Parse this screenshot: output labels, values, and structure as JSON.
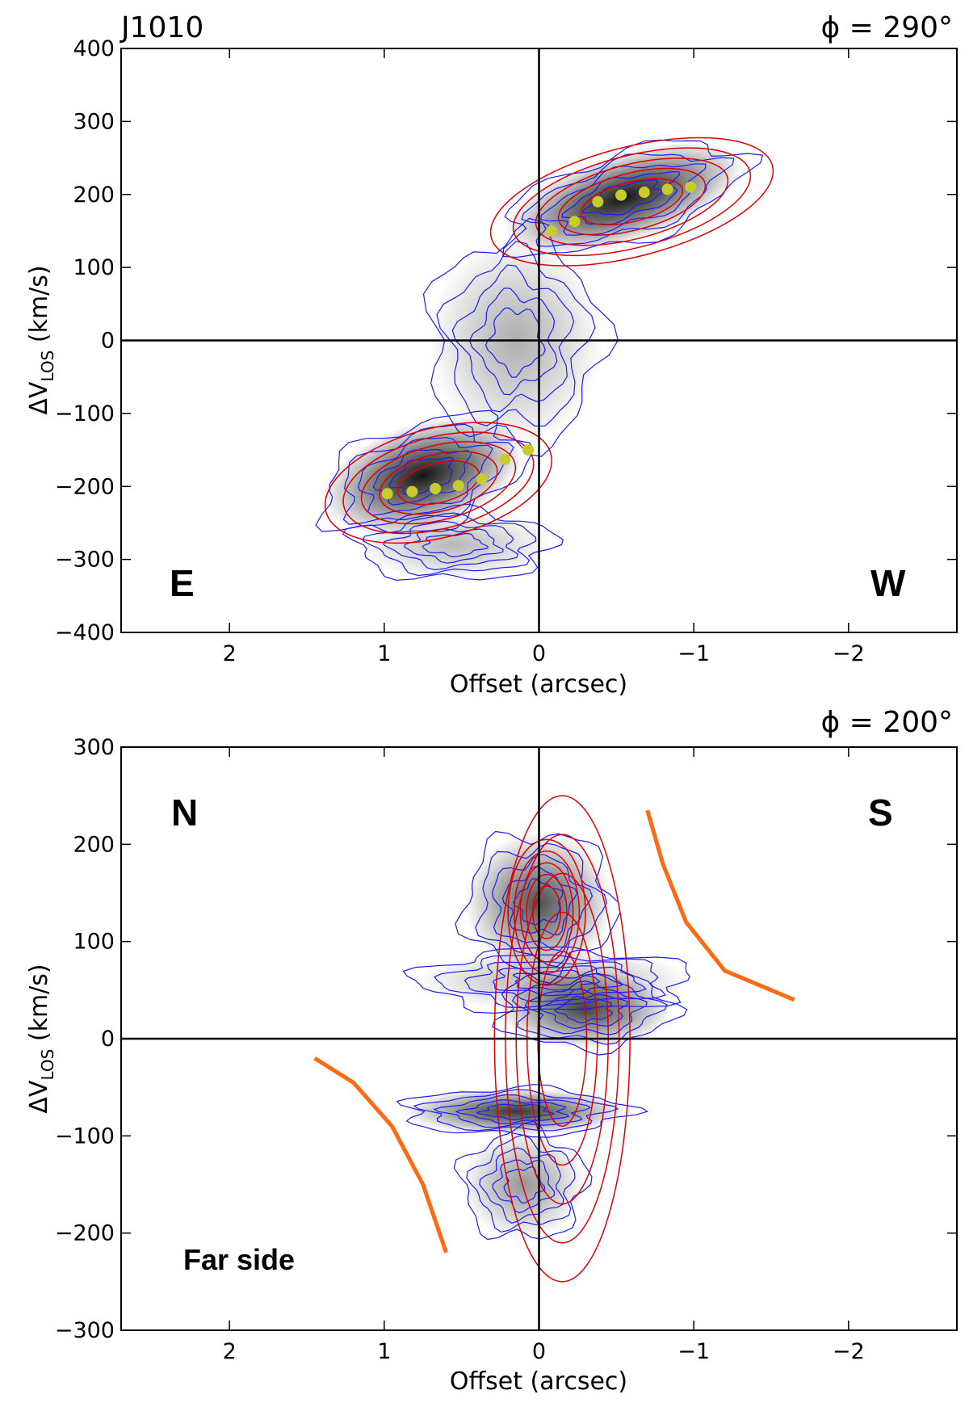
{
  "chart_data": [
    {
      "type": "contour",
      "object": "J1010",
      "angle_label": "ϕ = 290°",
      "xlabel": "Offset (arcsec)",
      "ylabel_main": "ΔV",
      "ylabel_sub": "LOS",
      "ylabel_unit": " (km/s)",
      "xlim": [
        2.7,
        -2.7
      ],
      "ylim": [
        -400,
        400
      ],
      "xticks": [
        2,
        1,
        0,
        -1,
        -2
      ],
      "xtick_labels": [
        "2",
        "1",
        "0",
        "−1",
        "−2"
      ],
      "yticks": [
        400,
        300,
        200,
        100,
        0,
        -100,
        -200,
        -300,
        -400
      ],
      "ytick_labels": [
        "400",
        "300",
        "200",
        "100",
        "0",
        "−100",
        "−200",
        "−300",
        "−400"
      ],
      "direction_left": "E",
      "direction_right": "W",
      "blobs": [
        {
          "x": 0.75,
          "y": -185,
          "sx": 0.42,
          "sy": 45,
          "amp": 1.0,
          "rot": -0.3
        },
        {
          "x": -0.55,
          "y": 195,
          "sx": 0.5,
          "sy": 38,
          "amp": 1.0,
          "rot": -0.3
        },
        {
          "x": 0.15,
          "y": 0,
          "sx": 0.35,
          "sy": 90,
          "amp": 0.35,
          "rot": 0.0
        },
        {
          "x": 0.55,
          "y": -280,
          "sx": 0.4,
          "sy": 30,
          "amp": 0.3,
          "rot": 0.0
        }
      ],
      "model_contours": [
        {
          "x": 0.65,
          "y": -195,
          "sx": 0.6,
          "sy": 60,
          "rot": -0.25
        },
        {
          "x": -0.6,
          "y": 190,
          "sx": 0.75,
          "sy": 60,
          "rot": -0.25
        }
      ],
      "points": [
        {
          "x": 0.98,
          "y": -210
        },
        {
          "x": 0.82,
          "y": -207
        },
        {
          "x": 0.67,
          "y": -203
        },
        {
          "x": 0.52,
          "y": -199
        },
        {
          "x": 0.37,
          "y": -190
        },
        {
          "x": 0.22,
          "y": -163
        },
        {
          "x": 0.07,
          "y": -150
        },
        {
          "x": -0.08,
          "y": 150
        },
        {
          "x": -0.23,
          "y": 163
        },
        {
          "x": -0.38,
          "y": 190
        },
        {
          "x": -0.53,
          "y": 199
        },
        {
          "x": -0.68,
          "y": 203
        },
        {
          "x": -0.83,
          "y": 207
        },
        {
          "x": -0.98,
          "y": 210
        }
      ]
    },
    {
      "type": "contour",
      "angle_label": "ϕ = 200°",
      "xlabel": "Offset (arcsec)",
      "ylabel_main": "ΔV",
      "ylabel_sub": "LOS",
      "ylabel_unit": " (km/s)",
      "xlim": [
        2.7,
        -2.7
      ],
      "ylim": [
        -300,
        300
      ],
      "xticks": [
        2,
        1,
        0,
        -1,
        -2
      ],
      "xtick_labels": [
        "2",
        "1",
        "0",
        "−1",
        "−2"
      ],
      "yticks": [
        300,
        200,
        100,
        0,
        -100,
        -200,
        -300
      ],
      "ytick_labels": [
        "300",
        "200",
        "100",
        "0",
        "−100",
        "−200",
        "−300"
      ],
      "direction_left": "N",
      "direction_right": "S",
      "annotation": "Far side",
      "blobs": [
        {
          "x": 0.0,
          "y": 140,
          "sx": 0.3,
          "sy": 45,
          "amp": 0.75,
          "rot": 0.0
        },
        {
          "x": -0.3,
          "y": 30,
          "sx": 0.35,
          "sy": 25,
          "amp": 0.8,
          "rot": 0.0
        },
        {
          "x": 0.15,
          "y": -75,
          "sx": 0.45,
          "sy": 15,
          "amp": 0.85,
          "rot": 0.0
        },
        {
          "x": 0.1,
          "y": -150,
          "sx": 0.25,
          "sy": 35,
          "amp": 0.45,
          "rot": 0.0
        },
        {
          "x": -0.1,
          "y": 60,
          "sx": 0.55,
          "sy": 20,
          "amp": 0.35,
          "rot": 0.0
        }
      ],
      "model_contours": [
        {
          "x": -0.15,
          "y": 0,
          "sx": 0.35,
          "sy": 200,
          "rot": 0.0
        },
        {
          "x": -0.05,
          "y": 130,
          "sx": 0.2,
          "sy": 60,
          "rot": 0.0
        }
      ],
      "curves": [
        {
          "x": [
            1.45,
            1.2,
            0.95,
            0.75,
            0.6
          ],
          "y": [
            -20,
            -45,
            -90,
            -150,
            -220
          ]
        },
        {
          "x": [
            -0.7,
            -0.8,
            -0.95,
            -1.2,
            -1.65
          ],
          "y": [
            235,
            180,
            120,
            70,
            40
          ]
        }
      ]
    }
  ]
}
